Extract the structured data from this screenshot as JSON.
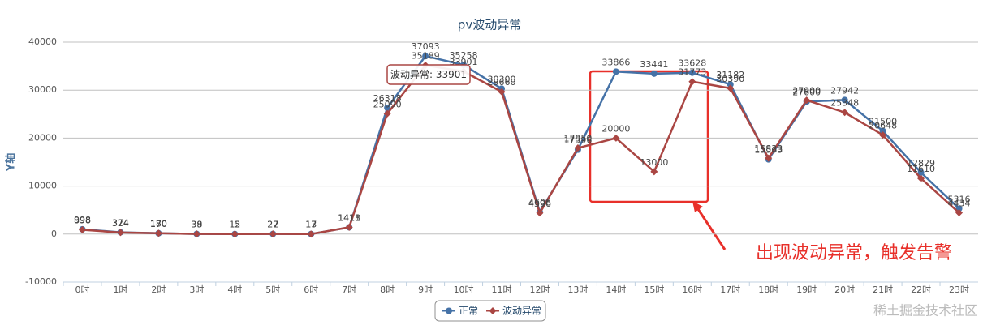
{
  "chart_data": {
    "type": "line",
    "title": "pv波动异常",
    "y_label": "Y轴",
    "categories": [
      "0时",
      "1时",
      "2时",
      "3时",
      "4时",
      "5时",
      "6时",
      "7时",
      "8时",
      "9时",
      "10时",
      "11时",
      "12时",
      "13时",
      "14时",
      "15时",
      "16时",
      "17时",
      "18时",
      "19时",
      "20时",
      "21时",
      "22时",
      "23时"
    ],
    "series": [
      {
        "name": "正常",
        "color": "#4572a7",
        "marker": "circle",
        "values": [
          998,
          374,
          170,
          39,
          15,
          27,
          17,
          1411,
          26318,
          37093,
          35258,
          30300,
          4606,
          17596,
          33866,
          33441,
          33628,
          31182,
          15563,
          27600,
          27942,
          21500,
          12829,
          5316
        ]
      },
      {
        "name": "波动异常",
        "color": "#aa4643",
        "marker": "diamond",
        "values": [
          898,
          324,
          180,
          38,
          12,
          22,
          13,
          1418,
          25090,
          35189,
          33901,
          29660,
          4396,
          17950,
          20000,
          13000,
          31773,
          30390,
          15833,
          27900,
          25348,
          20648,
          11610,
          4434
        ]
      }
    ],
    "ylim": [
      -10000,
      40000
    ],
    "yticks": [
      -10000,
      0,
      10000,
      20000,
      30000,
      40000
    ],
    "grid": true,
    "tooltip": "波动异常: 33901",
    "annotation": "出现波动异常，触发告警",
    "watermark": "稀土掘金技术社区"
  }
}
